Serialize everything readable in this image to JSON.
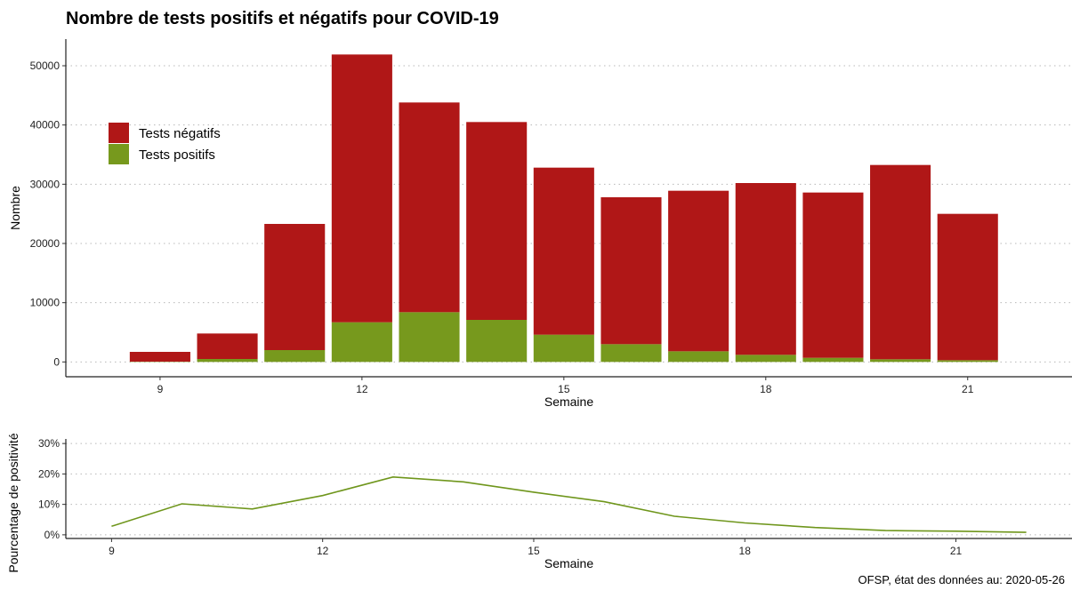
{
  "title": "Nombre de tests positifs et négatifs pour COVID-19",
  "source": "OFSP, état des données au: 2020-05-26",
  "colors": {
    "negatifs": "#b01717",
    "positifs": "#77991d",
    "line": "#6f961c"
  },
  "chart_data": [
    {
      "type": "bar",
      "stacked": true,
      "x": [
        9,
        10,
        11,
        12,
        13,
        14,
        15,
        16,
        17,
        18,
        19,
        20,
        21
      ],
      "series": [
        {
          "name": "Tests positifs",
          "color": "#77991d",
          "values": [
            50,
            500,
            2000,
            6700,
            8400,
            7100,
            4600,
            3000,
            1800,
            1200,
            700,
            450,
            300
          ]
        },
        {
          "name": "Tests négatifs",
          "color": "#b01717",
          "values": [
            1650,
            4300,
            21300,
            45200,
            35400,
            33400,
            28200,
            24800,
            27100,
            29000,
            27900,
            32800,
            24700
          ]
        }
      ],
      "xlabel": "Semaine",
      "ylabel": "Nombre",
      "xticks": [
        9,
        12,
        15,
        18,
        21
      ],
      "yticks": [
        0,
        10000,
        20000,
        30000,
        40000,
        50000
      ],
      "xlim": [
        7.6,
        22.55
      ],
      "ylim": [
        -2500,
        54500
      ],
      "grid": "horizontal-dotted",
      "legend": {
        "position": "top-left",
        "order": [
          "Tests négatifs",
          "Tests positifs"
        ]
      }
    },
    {
      "type": "line",
      "x": [
        9,
        10,
        11,
        12,
        13,
        14,
        15,
        16,
        17,
        18,
        19,
        20,
        21,
        22
      ],
      "series": [
        {
          "name": "",
          "color": "#6f961c",
          "values": [
            2.8,
            10.2,
            8.5,
            12.9,
            19.0,
            17.4,
            14.0,
            10.9,
            6.1,
            3.9,
            2.4,
            1.4,
            1.2,
            0.8
          ]
        }
      ],
      "xlabel": "Semaine",
      "ylabel": "Pourcentage de positivité",
      "xticks": [
        9,
        12,
        15,
        18,
        21
      ],
      "yticks": [
        0,
        10,
        20,
        30
      ],
      "ytick_labels": [
        "0%",
        "10%",
        "20%",
        "30%"
      ],
      "xlim": [
        8.35,
        22.65
      ],
      "ylim": [
        -1.2,
        31.5
      ],
      "grid": "horizontal-dotted"
    }
  ]
}
